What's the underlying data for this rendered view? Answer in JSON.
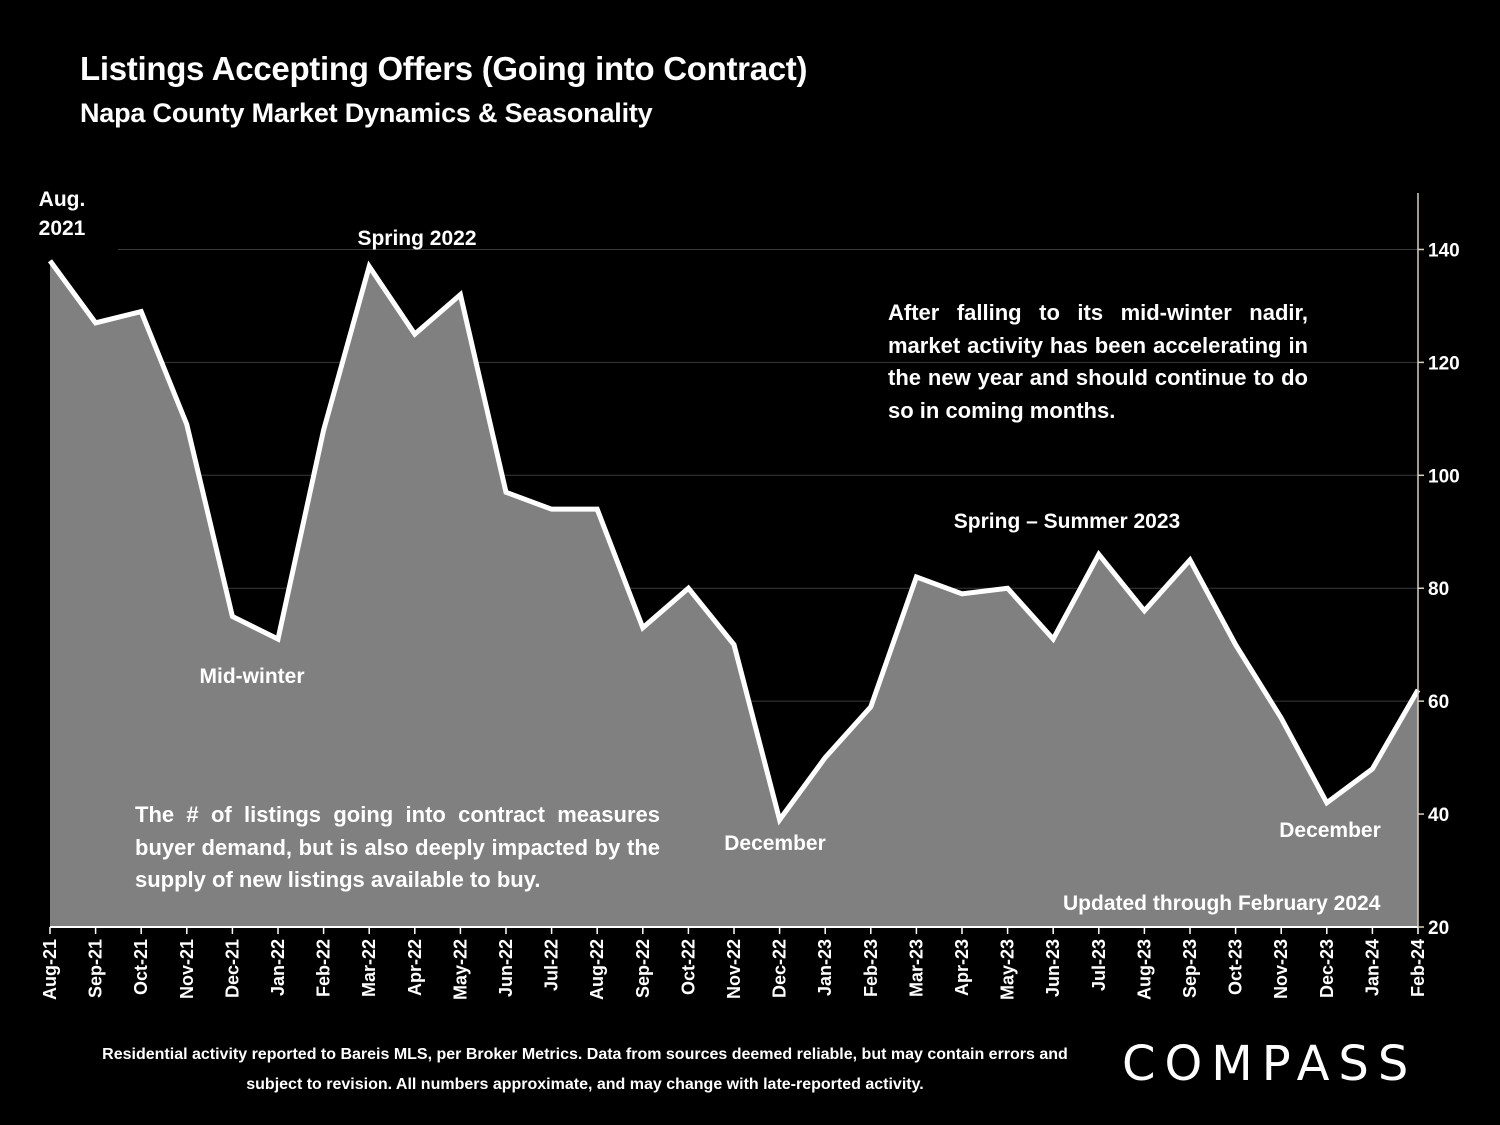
{
  "header": {
    "title": "Listings Accepting Offers (Going into Contract)",
    "subtitle": "Napa County Market Dynamics & Seasonality"
  },
  "notes": {
    "right": "After falling to its mid-winter nadir, market activity has been accelerating in the new year and should continue to do so in coming months.",
    "left": "The # of listings going into contract measures buyer demand, but is also deeply impacted by the supply of new listings available to buy.",
    "updated": "Updated through February 2024"
  },
  "footer": {
    "text": "Residential activity reported to Bareis MLS, per Broker Metrics. Data from sources deemed reliable, but may contain errors and subject to revision. All numbers approximate, and may change with late-reported activity."
  },
  "logo": {
    "text": "COMPASS"
  },
  "colors": {
    "background": "#000000",
    "area": "#808080",
    "line": "#ffffff",
    "grid": "#3a3a3a"
  },
  "chart_data": {
    "type": "area",
    "title": "Listings Accepting Offers (Going into Contract)",
    "x": [
      "Aug-21",
      "Sep-21",
      "Oct-21",
      "Nov-21",
      "Dec-21",
      "Jan-22",
      "Feb-22",
      "Mar-22",
      "Apr-22",
      "May-22",
      "Jun-22",
      "Jul-22",
      "Aug-22",
      "Sep-22",
      "Oct-22",
      "Nov-22",
      "Dec-22",
      "Jan-23",
      "Feb-23",
      "Mar-23",
      "Apr-23",
      "May-23",
      "Jun-23",
      "Jul-23",
      "Aug-23",
      "Sep-23",
      "Oct-23",
      "Nov-23",
      "Dec-23",
      "Jan-24",
      "Feb-24"
    ],
    "values": [
      138,
      127,
      129,
      109,
      75,
      71,
      108,
      137,
      125,
      132,
      97,
      94,
      94,
      73,
      80,
      70,
      39,
      50,
      59,
      82,
      79,
      80,
      71,
      86,
      76,
      85,
      70,
      57,
      42,
      48,
      62
    ],
    "ylim": [
      20,
      150
    ],
    "yticks": [
      20,
      40,
      60,
      80,
      100,
      120,
      140
    ],
    "yaxis_position": "right",
    "grid": true,
    "annotations": [
      {
        "text": "Aug.",
        "at": "Aug-21"
      },
      {
        "text": "2021",
        "at": "Aug-21"
      },
      {
        "text": "Spring 2022",
        "at": "Mar-22"
      },
      {
        "text": "Mid-winter",
        "at": "Jan-22"
      },
      {
        "text": "December",
        "at": "Dec-22"
      },
      {
        "text": "Spring – Summer 2023",
        "at": "Jul-23"
      },
      {
        "text": "December",
        "at": "Dec-23"
      }
    ]
  }
}
